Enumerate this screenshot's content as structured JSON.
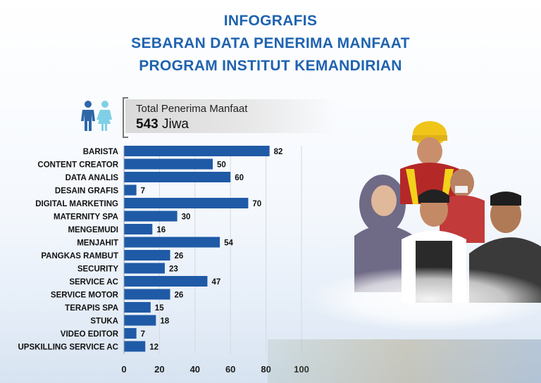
{
  "header": {
    "line1": "INFOGRAFIS",
    "line2": "SEBARAN DATA PENERIMA MANFAAT",
    "line3": "PROGRAM INSTITUT KEMANDIRIAN"
  },
  "total": {
    "label": "Total Penerima Manfaat",
    "value": "543",
    "unit": "Jiwa"
  },
  "icons": [
    "people-icon"
  ],
  "colors": {
    "title": "#1f63b0",
    "bar": "#1f5aa6"
  },
  "chart_data": {
    "type": "bar",
    "orientation": "horizontal",
    "categories": [
      "BARISTA",
      "CONTENT CREATOR",
      "DATA ANALIS",
      "DESAIN GRAFIS",
      "DIGITAL MARKETING",
      "MATERNITY SPA",
      "MENGEMUDI",
      "MENJAHIT",
      "PANGKAS RAMBUT",
      "SECURITY",
      "SERVICE AC",
      "SERVICE MOTOR",
      "TERAPIS SPA",
      "STUKA",
      "VIDEO EDITOR",
      "UPSKILLING SERVICE AC"
    ],
    "values": [
      82,
      50,
      60,
      7,
      70,
      30,
      16,
      54,
      26,
      23,
      47,
      26,
      15,
      18,
      7,
      12
    ],
    "xlim": [
      0,
      100
    ],
    "xticks": [
      "0",
      "20",
      "40",
      "60",
      "80",
      "100"
    ],
    "grid": true,
    "title": "",
    "xlabel": "",
    "ylabel": ""
  }
}
